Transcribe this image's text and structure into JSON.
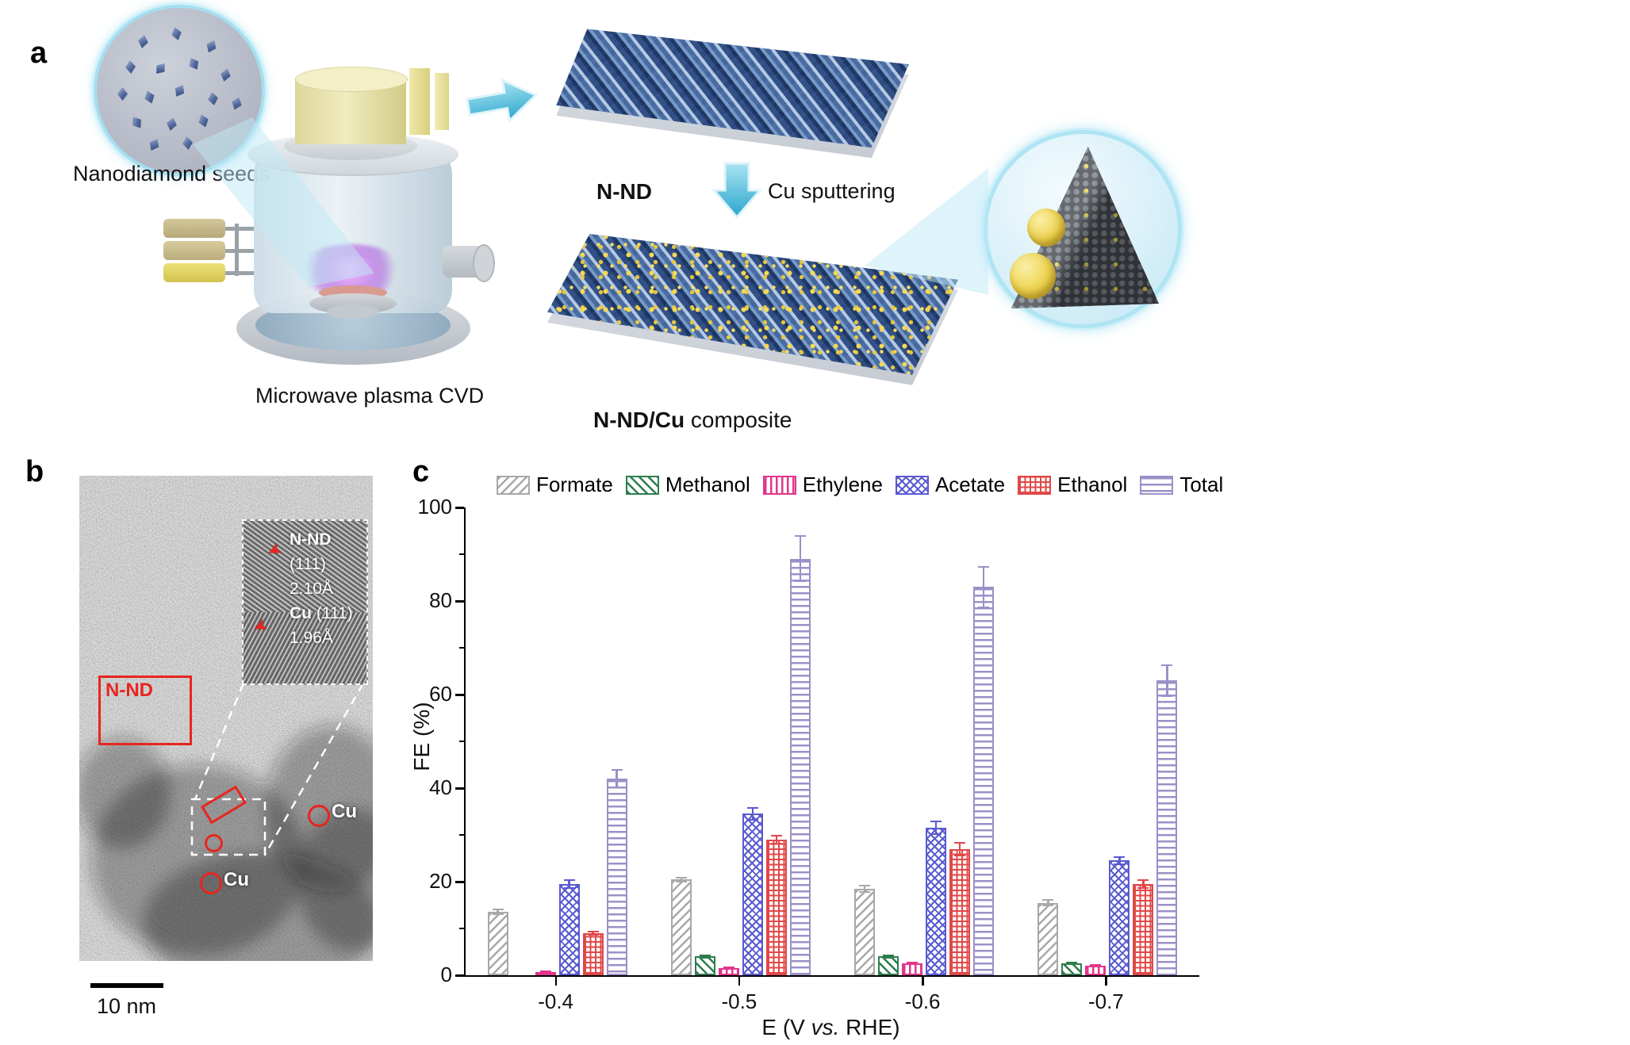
{
  "panel_a": {
    "label": "a",
    "seeds_label": "Nanodiamond seeds",
    "cvd_label": "Microwave plasma CVD",
    "nnd_label": "N-ND",
    "cu_sputtering_label": "Cu sputtering",
    "composite_bold": "N-ND/Cu",
    "composite_rest": " composite"
  },
  "panel_b": {
    "label": "b",
    "region_label": "N-ND",
    "inset": {
      "line1_bold": "N-ND",
      "line2": "(111)",
      "line3": "2.10Å",
      "line4_bold": "Cu",
      "line4_rest": " (111)",
      "line5": "1.96Å"
    },
    "cu_labels": [
      "Cu",
      "Cu"
    ],
    "scale_bar": "10 nm"
  },
  "panel_c": {
    "label": "c",
    "xlabel_pre": "E (V ",
    "xlabel_italic": "vs.",
    "xlabel_post": " RHE)"
  },
  "chart_data": {
    "type": "bar",
    "title": "",
    "xlabel": "E (V vs. RHE)",
    "ylabel": "FE (%)",
    "ylim": [
      0,
      100
    ],
    "yticks": [
      0,
      20,
      40,
      60,
      80,
      100
    ],
    "legend_position": "top",
    "grid": false,
    "categories": [
      "-0.4",
      "-0.5",
      "-0.6",
      "-0.7"
    ],
    "series": [
      {
        "name": "Formate",
        "color": "#a8a8a8",
        "hatch": "slash",
        "values": [
          13.5,
          20.5,
          18.5,
          15.5
        ],
        "errors": [
          0.7,
          0.6,
          0.8,
          0.7
        ]
      },
      {
        "name": "Methanol",
        "color": "#2e7d4f",
        "hatch": "backslash",
        "values": [
          0,
          4,
          4,
          2.5
        ],
        "errors": [
          0,
          0.4,
          0.4,
          0.3
        ]
      },
      {
        "name": "Ethylene",
        "color": "#e2368c",
        "hatch": "vertical",
        "values": [
          0.5,
          1.5,
          2.5,
          2
        ],
        "errors": [
          0.2,
          0.3,
          0.3,
          0.3
        ]
      },
      {
        "name": "Acetate",
        "color": "#5a5ad1",
        "hatch": "cross",
        "values": [
          19.5,
          34.5,
          31.5,
          24.5
        ],
        "errors": [
          1,
          1.5,
          1.5,
          1
        ]
      },
      {
        "name": "Ethanol",
        "color": "#e04848",
        "hatch": "grid",
        "values": [
          9,
          29,
          27,
          19.5
        ],
        "errors": [
          0.5,
          1,
          1.5,
          1
        ]
      },
      {
        "name": "Total",
        "color": "#9c90c8",
        "hatch": "horizontal",
        "values": [
          42,
          89,
          83,
          63
        ],
        "errors": [
          2,
          5,
          4.5,
          3.5
        ]
      }
    ]
  }
}
